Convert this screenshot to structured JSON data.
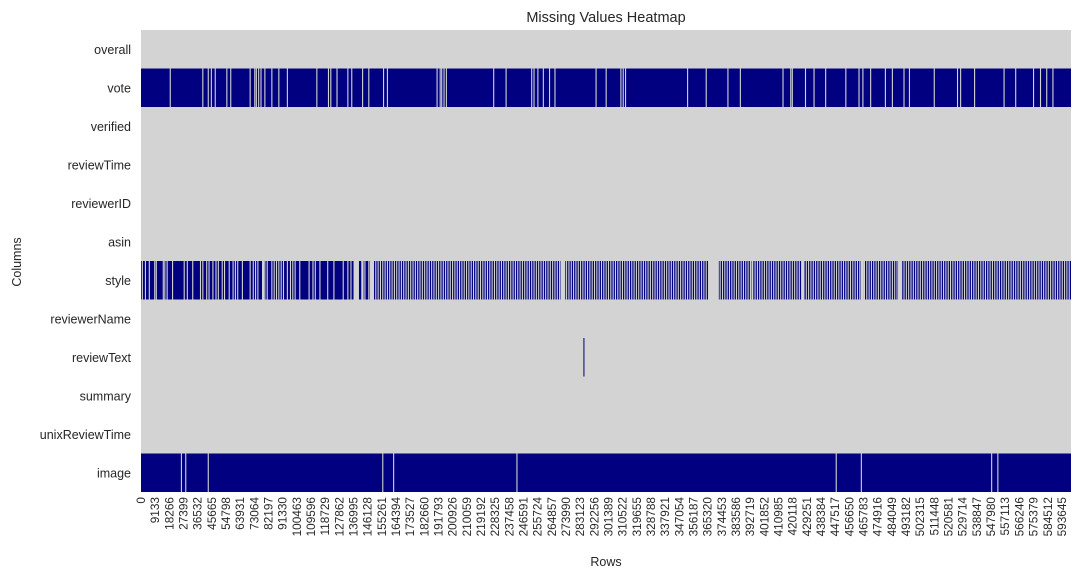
{
  "chart_data": {
    "type": "heatmap",
    "title": "Missing Values Heatmap",
    "xlabel": "Rows",
    "ylabel": "Columns",
    "n_rows": 599500,
    "rows": [
      "overall",
      "vote",
      "verified",
      "reviewTime",
      "reviewerID",
      "asin",
      "style",
      "reviewerName",
      "reviewText",
      "summary",
      "unixReviewTime",
      "image"
    ],
    "x_tick_labels": [
      "0",
      "9133",
      "18266",
      "27399",
      "36532",
      "45665",
      "54798",
      "63931",
      "73064",
      "82197",
      "91330",
      "100463",
      "109596",
      "118729",
      "127862",
      "136995",
      "146128",
      "155261",
      "164394",
      "173527",
      "182660",
      "191793",
      "200926",
      "210059",
      "219192",
      "228325",
      "237458",
      "246591",
      "255724",
      "264857",
      "273990",
      "283123",
      "292256",
      "301389",
      "310522",
      "319655",
      "328788",
      "337921",
      "347054",
      "356187",
      "365320",
      "374453",
      "383586",
      "392719",
      "401852",
      "410985",
      "420118",
      "429251",
      "438384",
      "447517",
      "456650",
      "465783",
      "474916",
      "484049",
      "493182",
      "502315",
      "511448",
      "520581",
      "529714",
      "538847",
      "547980",
      "557113",
      "566246",
      "575379",
      "584512",
      "593645"
    ],
    "colors": {
      "present": "#d3d3d3",
      "missing": "#000080"
    },
    "missing_fraction": {
      "overall": 0,
      "vote": 0.96,
      "verified": 0,
      "reviewTime": 0,
      "reviewerID": 0,
      "asin": 0,
      "style": 0.93,
      "reviewerName": 0,
      "reviewText": 0.002,
      "summary": 0,
      "unixReviewTime": 0,
      "image": 0.99
    },
    "present_rows": {
      "vote": [
        18500,
        39500,
        43000,
        45000,
        47500,
        55000,
        57500,
        70000,
        73000,
        74000,
        75500,
        77000,
        79500,
        84000,
        88500,
        94000,
        113000,
        120500,
        122000,
        126000,
        133000,
        135500,
        142500,
        146500,
        156000,
        158500,
        190500,
        192500,
        193500,
        195000,
        196500,
        227000,
        235000,
        251500,
        253000,
        255500,
        259000,
        263000,
        266500,
        293000,
        299500,
        309000,
        310500,
        312000,
        352000,
        364000,
        378000,
        386000,
        413500,
        418500,
        419500,
        428000,
        433500,
        441000,
        454000,
        462500,
        465000,
        470000,
        479500,
        484000,
        491500,
        495000,
        511000,
        526000,
        528000,
        537000,
        556000,
        563500,
        575000,
        579500,
        583500,
        587500
      ],
      "style": [
        500,
        2500,
        5000,
        8500,
        9500,
        14000,
        15000,
        16500,
        20000,
        27500,
        29500,
        33000,
        38000,
        39500,
        42000,
        43500,
        46000,
        48000,
        49500,
        52000,
        53500,
        56500,
        59000,
        60500,
        62000,
        65000,
        70000,
        72000,
        73500,
        75000,
        78000,
        79500,
        81000,
        84000,
        85500,
        87000,
        88500,
        90000,
        91500,
        94000,
        96000,
        97500,
        99000,
        102000,
        108000,
        110500,
        112000,
        115000,
        120000,
        124000,
        130000,
        133000,
        135000,
        142500,
        144000,
        146500,
        148000,
        149500,
        151000,
        152500,
        154000,
        155500,
        157000,
        158500,
        160000,
        161500,
        163000,
        164500,
        166000,
        167500,
        169000,
        170500,
        172000,
        173500,
        175000,
        176500,
        178000,
        179500,
        181000,
        182500,
        184000,
        185500,
        187000,
        188500,
        190000,
        191500,
        193000,
        194500,
        196000,
        197500,
        199000,
        200500,
        202000,
        203500,
        205000,
        206500,
        208000,
        209500,
        211000,
        212500,
        214000,
        215500,
        217000,
        218500,
        220000,
        221500,
        223000,
        224500,
        226000,
        227500,
        229000,
        230500,
        232000,
        233500,
        235000,
        236500,
        238000,
        239500,
        241000,
        242500,
        244000,
        245500,
        247000,
        248500,
        250000,
        251500,
        253000,
        254500,
        256000,
        257500,
        259000,
        260500,
        262000,
        263500,
        265000,
        266500,
        268000,
        269500,
        271000,
        272500,
        274000,
        275500,
        277000,
        278500,
        280000,
        281500,
        283000,
        284500,
        286000,
        287500,
        289000,
        290500,
        292000,
        293500,
        295000,
        296500,
        298000,
        299500,
        301000,
        302500,
        304000,
        305500,
        307000,
        308500,
        310000,
        311500,
        313000,
        314500,
        316000,
        317500,
        319000,
        320500,
        322000,
        323500,
        325000,
        326500,
        328000,
        329500,
        331000,
        332500,
        334000,
        335500,
        337000,
        338500,
        340000,
        341500,
        343000,
        344500,
        346000,
        347500,
        349000,
        350500,
        352000,
        353500,
        355000,
        356500,
        358000,
        359500,
        361000,
        362500,
        364000,
        365500,
        367000,
        368500,
        370000,
        371500,
        373000,
        374500,
        376000,
        377500,
        379000,
        380500,
        382000,
        383500,
        385000,
        386500,
        388000,
        389500,
        391000,
        392500,
        394000,
        395500,
        397000,
        398500,
        400000,
        401500,
        403000,
        404500,
        406000,
        407500,
        409000,
        410500,
        412000,
        413500,
        415000,
        416500,
        418000,
        419500,
        421000,
        422500,
        424000,
        425500,
        427000,
        428500,
        430000,
        431500,
        433000,
        434500,
        436000,
        437500,
        439000,
        440500,
        442000,
        443500,
        445000,
        446500,
        448000,
        449500,
        451000,
        452500,
        454000,
        455500,
        457000,
        458500,
        460000,
        461500,
        463000,
        464500,
        466000,
        467500,
        469000,
        470500,
        472000,
        473500,
        475000,
        476500,
        478000,
        479500,
        481000,
        482500,
        484000,
        485500,
        487000,
        488500,
        490000,
        491500,
        493000,
        494500,
        496000,
        497500,
        499000,
        500500,
        502000,
        503500,
        505000,
        506500,
        508000,
        509500,
        511000,
        512500,
        514000,
        515500,
        517000,
        518500,
        520000,
        521500,
        523000,
        524500,
        526000,
        527500,
        529000,
        530500,
        532000,
        533500,
        535000,
        536500,
        538000,
        539500,
        541000,
        542500,
        544000,
        545500,
        547000,
        548500,
        550000,
        551500,
        553000,
        554500,
        556000,
        557500,
        559000,
        560500,
        562000,
        563500,
        565000,
        566500,
        568000,
        569500,
        571000,
        572500,
        574000,
        575500,
        577000,
        578500,
        580000,
        581500,
        583000,
        584500,
        586000,
        587500,
        589000,
        590500,
        592000,
        593500,
        595000,
        596500,
        598000
      ],
      "image": [
        25700,
        28500,
        43000,
        155500,
        162500,
        242000,
        447800,
        464000,
        548000,
        552000
      ]
    },
    "present_gaps": {
      "style": [
        [
          78000,
          79400
        ],
        [
          137000,
          140500
        ],
        [
          142000,
          143500
        ],
        [
          147500,
          150000
        ],
        [
          270500,
          273500
        ],
        [
          366000,
          372500
        ],
        [
          393500,
          394500
        ],
        [
          426000,
          427500
        ],
        [
          464000,
          466000
        ],
        [
          488000,
          490500
        ]
      ]
    },
    "missing_rows": {
      "reviewText": [
        [
          285200,
          285700
        ]
      ]
    }
  }
}
